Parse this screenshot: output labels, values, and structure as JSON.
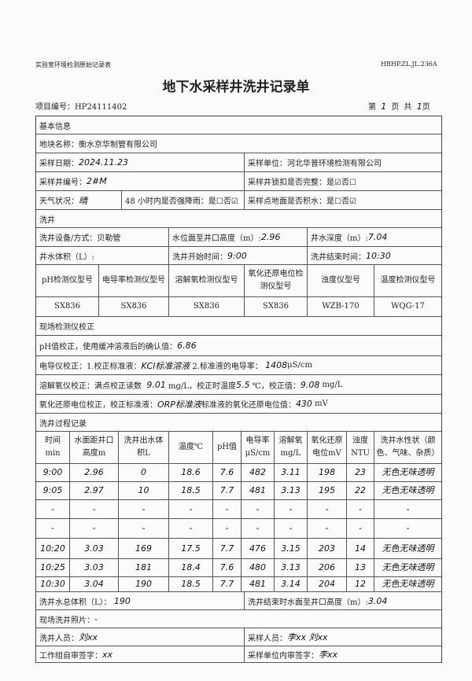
{
  "header": {
    "form_series": "实验室环境检测原始记录表",
    "form_code": "HBHP.ZL.JL.236A",
    "title": "地下水采样井洗井记录单",
    "project_label": "项目编号：",
    "project_no": "HP24111402",
    "page_prefix": "第",
    "page_no": "1",
    "page_mid": "页 共",
    "page_total": "1",
    "page_suffix": "页"
  },
  "basic": {
    "section": "基本信息",
    "site_label": "地块名称：",
    "site": "衡水京华制管有限公司",
    "date_label": "采样日期：",
    "date": "2024.11.23",
    "unit_label": "采样单位：",
    "unit": "河北华普环境检测有限公司",
    "well_label": "采样井编号：",
    "well": "2#M",
    "lock_label": "采样井锁扣是否完整：是☑否☐",
    "weather_label": "天气状况：",
    "weather": "晴",
    "rain_label": "48 小时内是否强降雨：是☐否☑",
    "ponding_label": "采样点地面是否积水：是☐否☑"
  },
  "wash": {
    "section": "洗井",
    "equip_label": "洗井设备/方式：",
    "equip": "贝勒管",
    "level_label": "水位面至井口高度（m）:",
    "level": "2.96",
    "depth_label": "井水深度（m）:",
    "depth": "7.04",
    "volume_label": "井水体积（L）:",
    "volume": "",
    "start_label": "洗井开始时间：",
    "start": "9:00",
    "end_label": "洗井结束时间：",
    "end": "10:30",
    "instr_headers": [
      "pH检测仪型号",
      "电导率检测仪型号",
      "溶解氧检测仪型号",
      "氧化还原电位检测仪型号",
      "浊度仪型号",
      "温度检测仪型号"
    ],
    "instr_models": [
      "SX836",
      "SX836",
      "SX836",
      "SX836",
      "WZB-170",
      "WQG-17"
    ]
  },
  "calib": {
    "section": "现场检测仪校正",
    "ph_label": "pH值校正，使用缓冲溶液后的确认值：",
    "ph": "6.86",
    "ec_label1": "电导仪校正：1.校正标准液：",
    "ec_std": "KCl标准溶液",
    "ec_label2": "2.标准液的电导率：",
    "ec_val": "1408",
    "ec_unit": "μS/cm",
    "do_label1": "溶解氧仪校正：满点校正读数",
    "do_read": "9.01",
    "do_label2": "mg/L，校正时温度",
    "do_temp": "5.5",
    "do_label3": "℃，校正值：",
    "do_val": "9.08",
    "do_unit": "mg/L",
    "orp_label1": "氧化还原电位校正，校正标准液：",
    "orp_std": "ORP标准液",
    "orp_label2": "标准液的氧化还原电位值：",
    "orp_val": "430",
    "orp_unit": "mV"
  },
  "process": {
    "section": "洗井过程记录",
    "headers": [
      "时间 min",
      "水面距井口高度m",
      "洗井出水体积L",
      "温度℃",
      "pH值",
      "电导率 μS/cm",
      "溶解氧 mg/L",
      "氧化还原电位mV",
      "浊度 NTU",
      "洗井水性状（颜色、气味、杂质）"
    ],
    "rows": [
      [
        "9:00",
        "2.96",
        "0",
        "18.6",
        "7.6",
        "482",
        "3.11",
        "198",
        "23",
        "无色无味透明"
      ],
      [
        "9:05",
        "2.97",
        "10",
        "18.5",
        "7.7",
        "481",
        "3.13",
        "195",
        "22",
        "无色无味透明"
      ],
      [
        "-",
        "-",
        "-",
        "-",
        "-",
        "-",
        "-",
        "-",
        "-",
        "-"
      ],
      [
        "-",
        "-",
        "-",
        "-",
        "-",
        "-",
        "-",
        "-",
        "-",
        "-"
      ],
      [
        "10:20",
        "3.03",
        "169",
        "17.5",
        "7.7",
        "476",
        "3.15",
        "203",
        "14",
        "无色无味透明"
      ],
      [
        "10:25",
        "3.03",
        "181",
        "18.4",
        "7.6",
        "480",
        "3.13",
        "206",
        "13",
        "无色无味透明"
      ],
      [
        "10:30",
        "3.04",
        "190",
        "18.5",
        "7.7",
        "481",
        "3.14",
        "204",
        "12",
        "无色无味透明"
      ]
    ]
  },
  "footer": {
    "total_label": "洗井水总体积（L）：",
    "total": "190",
    "end_level_label": "洗井结束时水面至井口高度（m）:",
    "end_level": "3.04",
    "photo_label": "现场洗井照片：",
    "photo": "-",
    "washer_label": "洗井人员：",
    "washer": "刘xx",
    "sampler_label": "采样人员：",
    "sampler": "李xx 刘xx",
    "selfcheck_label": "工作组自审签字：",
    "selfcheck": "xx",
    "review_label": "采样单位内审签字：",
    "review": "李xx"
  }
}
